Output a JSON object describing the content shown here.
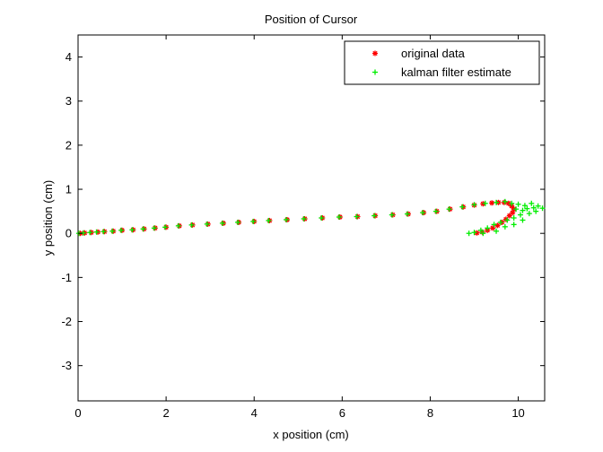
{
  "chart_data": {
    "type": "scatter",
    "title": "Position of Cursor",
    "xlabel": "x position (cm)",
    "ylabel": "y position (cm)",
    "xlim": [
      0,
      10.6
    ],
    "ylim": [
      -3.8,
      4.5
    ],
    "xticks": [
      0,
      2,
      4,
      6,
      8,
      10
    ],
    "xtick_labels": [
      "0",
      "2",
      "4",
      "6",
      "8",
      "10"
    ],
    "yticks": [
      -3,
      -2,
      -1,
      0,
      1,
      2,
      3,
      4
    ],
    "ytick_labels": [
      "-3",
      "-2",
      "-1",
      "0",
      "1",
      "2",
      "3",
      "4"
    ],
    "grid": false,
    "legend": "top-right",
    "series": [
      {
        "name": "original data",
        "color": "#ff0000",
        "marker": "asterisk",
        "points": [
          [
            0.05,
            0.0
          ],
          [
            0.15,
            0.01
          ],
          [
            0.3,
            0.02
          ],
          [
            0.45,
            0.03
          ],
          [
            0.6,
            0.04
          ],
          [
            0.8,
            0.05
          ],
          [
            1.0,
            0.07
          ],
          [
            1.25,
            0.08
          ],
          [
            1.5,
            0.1
          ],
          [
            1.75,
            0.12
          ],
          [
            2.0,
            0.14
          ],
          [
            2.3,
            0.17
          ],
          [
            2.6,
            0.19
          ],
          [
            2.95,
            0.21
          ],
          [
            3.3,
            0.23
          ],
          [
            3.65,
            0.25
          ],
          [
            4.0,
            0.27
          ],
          [
            4.35,
            0.29
          ],
          [
            4.75,
            0.31
          ],
          [
            5.15,
            0.33
          ],
          [
            5.55,
            0.35
          ],
          [
            5.95,
            0.37
          ],
          [
            6.35,
            0.38
          ],
          [
            6.75,
            0.4
          ],
          [
            7.15,
            0.42
          ],
          [
            7.5,
            0.44
          ],
          [
            7.85,
            0.47
          ],
          [
            8.15,
            0.5
          ],
          [
            8.45,
            0.55
          ],
          [
            8.75,
            0.6
          ],
          [
            9.0,
            0.64
          ],
          [
            9.2,
            0.67
          ],
          [
            9.4,
            0.69
          ],
          [
            9.55,
            0.7
          ],
          [
            9.68,
            0.7
          ],
          [
            9.78,
            0.68
          ],
          [
            9.85,
            0.62
          ],
          [
            9.9,
            0.55
          ],
          [
            9.87,
            0.47
          ],
          [
            9.8,
            0.4
          ],
          [
            9.72,
            0.32
          ],
          [
            9.63,
            0.25
          ],
          [
            9.53,
            0.18
          ],
          [
            9.42,
            0.12
          ],
          [
            9.3,
            0.07
          ],
          [
            9.18,
            0.03
          ],
          [
            9.06,
            0.01
          ]
        ]
      },
      {
        "name": "kalman filter estimate",
        "color": "#00ee00",
        "marker": "plus",
        "points": [
          [
            0.02,
            0.0
          ],
          [
            0.12,
            0.01
          ],
          [
            0.27,
            0.02
          ],
          [
            0.42,
            0.03
          ],
          [
            0.58,
            0.04
          ],
          [
            0.78,
            0.05
          ],
          [
            0.98,
            0.07
          ],
          [
            1.23,
            0.08
          ],
          [
            1.48,
            0.1
          ],
          [
            1.73,
            0.12
          ],
          [
            1.98,
            0.14
          ],
          [
            2.28,
            0.17
          ],
          [
            2.58,
            0.19
          ],
          [
            2.93,
            0.21
          ],
          [
            3.28,
            0.23
          ],
          [
            3.63,
            0.25
          ],
          [
            3.98,
            0.27
          ],
          [
            4.33,
            0.29
          ],
          [
            4.73,
            0.31
          ],
          [
            5.13,
            0.33
          ],
          [
            5.53,
            0.35
          ],
          [
            5.93,
            0.37
          ],
          [
            6.33,
            0.38
          ],
          [
            6.73,
            0.4
          ],
          [
            7.13,
            0.42
          ],
          [
            7.48,
            0.44
          ],
          [
            7.83,
            0.47
          ],
          [
            8.13,
            0.5
          ],
          [
            8.43,
            0.55
          ],
          [
            8.73,
            0.6
          ],
          [
            9.0,
            0.65
          ],
          [
            9.25,
            0.68
          ],
          [
            9.5,
            0.7
          ],
          [
            9.7,
            0.72
          ],
          [
            9.85,
            0.68
          ],
          [
            10.0,
            0.66
          ],
          [
            10.15,
            0.63
          ],
          [
            10.3,
            0.68
          ],
          [
            10.45,
            0.62
          ],
          [
            10.55,
            0.57
          ],
          [
            10.4,
            0.5
          ],
          [
            10.25,
            0.45
          ],
          [
            10.1,
            0.52
          ],
          [
            9.95,
            0.55
          ],
          [
            10.05,
            0.42
          ],
          [
            9.9,
            0.35
          ],
          [
            9.75,
            0.3
          ],
          [
            9.6,
            0.25
          ],
          [
            9.45,
            0.2
          ],
          [
            9.3,
            0.12
          ],
          [
            9.15,
            0.07
          ],
          [
            9.0,
            0.02
          ],
          [
            8.88,
            0.0
          ],
          [
            9.2,
            0.0
          ],
          [
            9.5,
            0.05
          ],
          [
            9.7,
            0.15
          ],
          [
            9.9,
            0.2
          ],
          [
            10.1,
            0.3
          ],
          [
            10.2,
            0.56
          ],
          [
            10.35,
            0.58
          ]
        ]
      }
    ]
  }
}
